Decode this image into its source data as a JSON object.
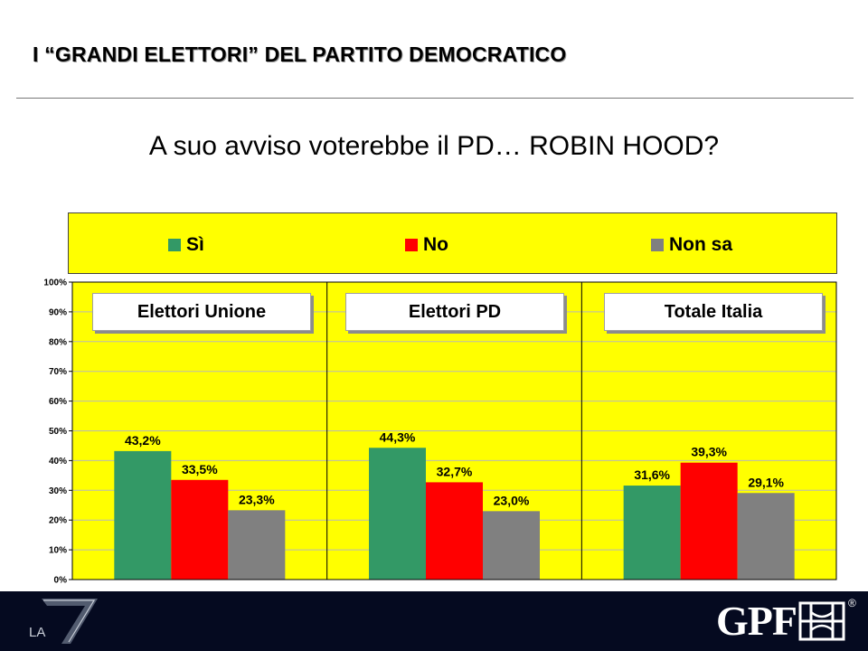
{
  "header": {
    "title": "I “GRANDI ELETTORI” DEL PARTITO DEMOCRATICO",
    "question": "A suo avviso voterebbe il PD… ROBIN HOOD?"
  },
  "legend": [
    {
      "label": "Sì",
      "color": "#339966"
    },
    {
      "label": "No",
      "color": "#ff0000"
    },
    {
      "label": "Non sa",
      "color": "#808080"
    }
  ],
  "chart_data": {
    "type": "bar",
    "y_ticks": [
      "0%",
      "10%",
      "20%",
      "30%",
      "40%",
      "50%",
      "60%",
      "70%",
      "80%",
      "90%",
      "100%"
    ],
    "ylim": [
      0,
      100
    ],
    "plot_background": "#ffff00",
    "gridlines": true,
    "legend_position": "top",
    "categories": [
      "Elettori Unione",
      "Elettori PD",
      "Totale Italia"
    ],
    "series": [
      {
        "name": "Sì",
        "color": "#339966",
        "values": [
          43.2,
          44.3,
          31.6
        ],
        "labels": [
          "43,2%",
          "44,3%",
          "31,6%"
        ]
      },
      {
        "name": "No",
        "color": "#ff0000",
        "values": [
          33.5,
          32.7,
          39.3
        ],
        "labels": [
          "33,5%",
          "32,7%",
          "39,3%"
        ]
      },
      {
        "name": "Non sa",
        "color": "#808080",
        "values": [
          23.3,
          23.0,
          29.1
        ],
        "labels": [
          "23,3%",
          "23,0%",
          "29,1%"
        ]
      }
    ]
  },
  "footer": {
    "left_logo": "LA",
    "right_logo": "GPF",
    "registered_mark": "®"
  }
}
